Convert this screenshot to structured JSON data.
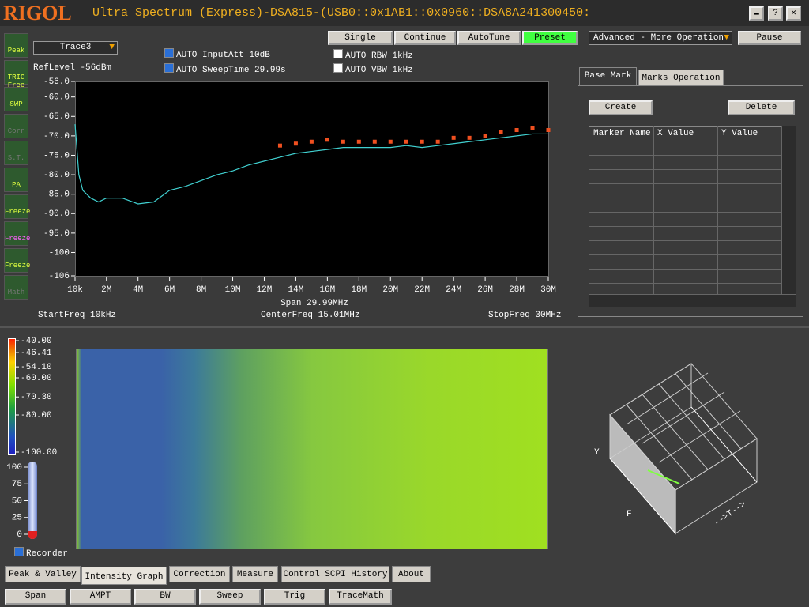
{
  "header": {
    "logo": "RIGOL",
    "title": "Ultra Spectrum (Express)-DSA815-(USB0::0x1AB1::0x0960::DSA8A241300450:"
  },
  "toolbar": {
    "buttons": [
      "Single",
      "Continue",
      "AutoTune",
      "Preset"
    ],
    "mode": "Advanced - More Operation",
    "pause": "Pause",
    "trace": "Trace3"
  },
  "sidebar": [
    "Peak",
    "TRIG Free",
    "SWP",
    "Corr",
    "S.T.",
    "PA",
    "Freeze",
    "Freeze",
    "Freeze",
    "Math"
  ],
  "settings": {
    "ref_level": "RefLevel  -56dBm",
    "input_att": "AUTO InputAtt  10dB",
    "sweep_time": "AUTO SweepTime  29.99s",
    "rbw": "AUTO RBW  1kHz",
    "vbw": "AUTO VBW  1kHz"
  },
  "spectrum": {
    "ylim": [
      -106,
      -56
    ],
    "xlim": [
      0.01,
      30
    ],
    "yticks": [
      {
        "value": -56,
        "label": "-56.0"
      },
      {
        "value": -60,
        "label": "-60.0"
      },
      {
        "value": -65,
        "label": "-65.0"
      },
      {
        "value": -70,
        "label": "-70.0"
      },
      {
        "value": -75,
        "label": "-75.0"
      },
      {
        "value": -80,
        "label": "-80.0"
      },
      {
        "value": -85,
        "label": "-85.0"
      },
      {
        "value": -90,
        "label": "-90.0"
      },
      {
        "value": -95,
        "label": "-95.0"
      },
      -100,
      -106
    ],
    "xticks": [
      {
        "value": 0.01,
        "label": "10k"
      },
      {
        "value": 2,
        "label": "2M"
      },
      {
        "value": 4,
        "label": "4M"
      },
      {
        "value": 6,
        "label": "6M"
      },
      {
        "value": 8,
        "label": "8M"
      },
      {
        "value": 10,
        "label": "10M"
      },
      {
        "value": 12,
        "label": "12M"
      },
      {
        "value": 14,
        "label": "14M"
      },
      {
        "value": 16,
        "label": "16M"
      },
      {
        "value": 18,
        "label": "18M"
      },
      {
        "value": 20,
        "label": "20M"
      },
      {
        "value": 22,
        "label": "22M"
      },
      {
        "value": 24,
        "label": "24M"
      },
      {
        "value": 26,
        "label": "26M"
      },
      {
        "value": 28,
        "label": "28M"
      },
      {
        "value": 30,
        "label": "30M"
      }
    ],
    "trace": {
      "color": "#40d0d0",
      "x": [
        0.01,
        0.25,
        0.5,
        1,
        1.5,
        2,
        3,
        4,
        5,
        6,
        7,
        8,
        9,
        10,
        11,
        12,
        13,
        14,
        15,
        16,
        17,
        18,
        19,
        20,
        21,
        22,
        23,
        24,
        25,
        26,
        27,
        28,
        29,
        30
      ],
      "values": [
        -67,
        -80,
        -84,
        -86,
        -87,
        -86,
        -86,
        -87.5,
        -87,
        -84,
        -83,
        -81.5,
        -80,
        -79,
        -77.5,
        -76.5,
        -75.5,
        -74.5,
        -74,
        -73.5,
        -73,
        -73,
        -73,
        -73,
        -72.5,
        -73,
        -72.5,
        -72,
        -71.5,
        -71,
        -70.5,
        -70,
        -69.5,
        -69.5
      ]
    },
    "peaks": {
      "color": "#f05020",
      "x": [
        13,
        14,
        15,
        16,
        17,
        18,
        19,
        20,
        21,
        22,
        23,
        24,
        25,
        26,
        27,
        28,
        29,
        30
      ],
      "values": [
        -72.5,
        -72,
        -71.5,
        -71,
        -71.5,
        -71.5,
        -71.5,
        -71.5,
        -71.5,
        -71.5,
        -71.5,
        -70.5,
        -70.5,
        -70,
        -69,
        -68.5,
        -68,
        -68.5
      ]
    },
    "span": "Span  29.99MHz",
    "start": "StartFreq  10kHz",
    "center": "CenterFreq  15.01MHz",
    "stop": "StopFreq  30MHz"
  },
  "markers": {
    "tabs": [
      "Base Mark",
      "Marks Operation"
    ],
    "create": "Create",
    "delete": "Delete",
    "columns": [
      "Marker Name",
      "X Value",
      "Y Value"
    ]
  },
  "intensity": {
    "lim": [
      -100,
      -40
    ],
    "ticks": [
      {
        "value": -40,
        "label": "-40.00"
      },
      {
        "value": -46.41,
        "label": "-46.41"
      },
      {
        "value": -54.1,
        "label": "-54.10"
      },
      {
        "value": -60,
        "label": "-60.00"
      },
      {
        "value": -70.3,
        "label": "-70.30"
      },
      {
        "value": -80,
        "label": "-80.00"
      },
      {
        "value": -100,
        "label": "-100.00"
      }
    ],
    "recorder_lim": [
      0,
      100
    ],
    "recorder_ticks": [
      100,
      75,
      50,
      25,
      0
    ],
    "recorder": "Recorder",
    "axes": [
      "Y",
      "F",
      "-->T-->"
    ]
  },
  "bottom_tabs": [
    "Peak & Valley",
    "Intensity Graph",
    "Correction",
    "Measure",
    "Control SCPI History",
    "About"
  ],
  "bottom_buttons": [
    "Span",
    "AMPT",
    "BW",
    "Sweep",
    "Trig",
    "TraceMath"
  ]
}
